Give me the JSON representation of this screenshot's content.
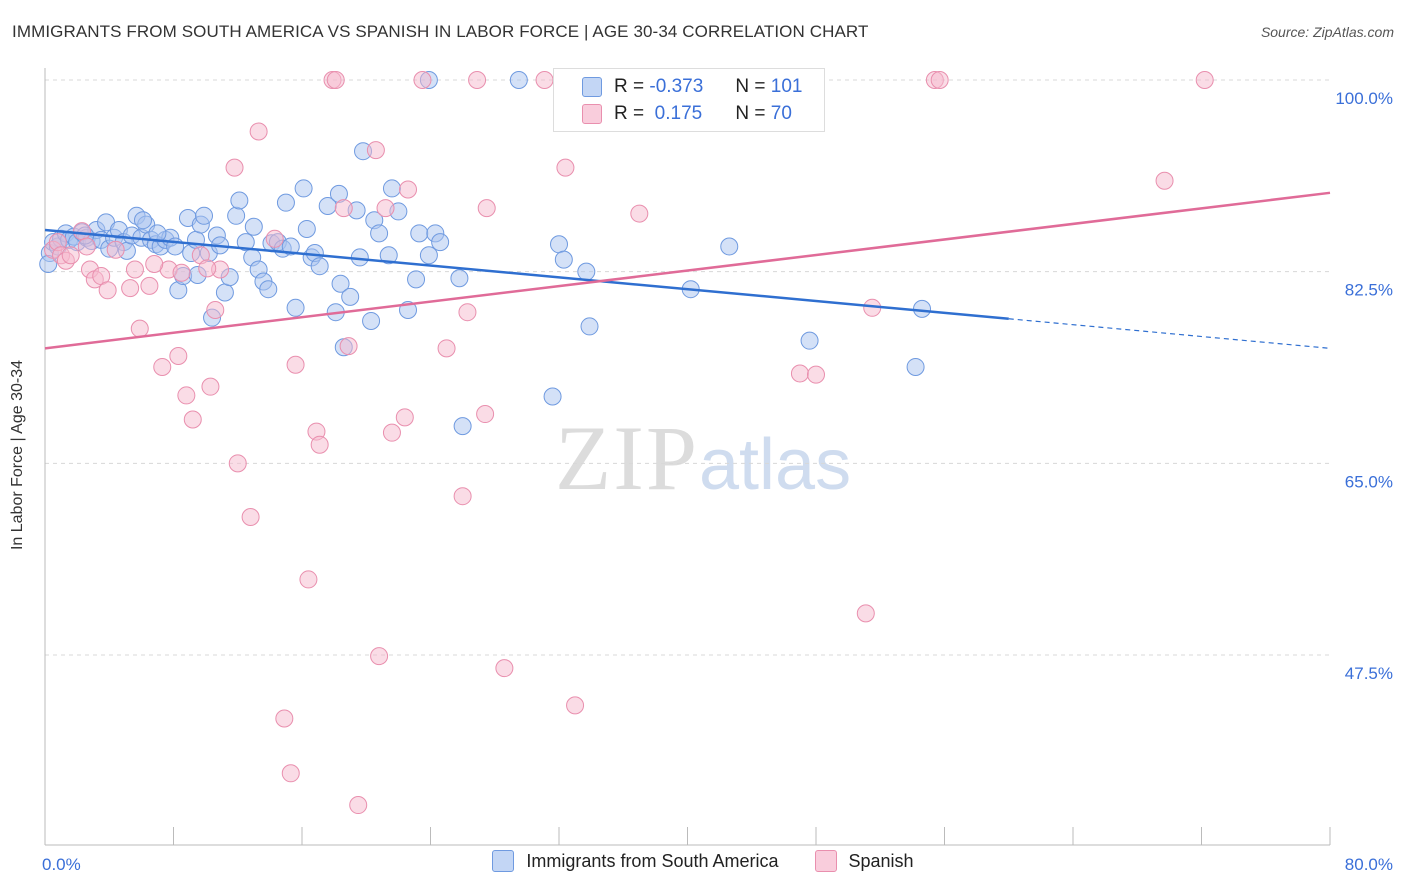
{
  "header": {
    "title": "IMMIGRANTS FROM SOUTH AMERICA VS SPANISH IN LABOR FORCE | AGE 30-34 CORRELATION CHART",
    "source": "Source: ZipAtlas.com"
  },
  "watermark": {
    "zip": "ZIP",
    "atlas": "atlas"
  },
  "legend": {
    "rows": [
      {
        "r_label": "R =",
        "r_value": "-0.373",
        "n_label": "N =",
        "n_value": "101"
      },
      {
        "r_label": "R =",
        "r_value": " 0.175",
        "n_label": "N =",
        "n_value": "70"
      }
    ]
  },
  "bottom_legend": {
    "series1": "Immigrants from South America",
    "series2": "Spanish"
  },
  "colors": {
    "blue_fill": "#a9c4ef",
    "blue_stroke": "#6f9ae0",
    "blue_line": "#2f6fd0",
    "pink_fill": "#f6b9cd",
    "pink_stroke": "#e98fae",
    "pink_line": "#e06b98",
    "tick_text": "#3a6fd8"
  },
  "chart_data": {
    "type": "scatter",
    "xlabel": "",
    "ylabel": "In Labor Force | Age 30-34",
    "xlim": [
      0,
      80
    ],
    "ylim": [
      32,
      102
    ],
    "x_tick_labels": [
      "0.0%",
      "80.0%"
    ],
    "y_ticks": [
      47.5,
      65.0,
      82.5,
      100.0
    ],
    "y_tick_labels": [
      "47.5%",
      "65.0%",
      "82.5%",
      "100.0%"
    ],
    "grid": true,
    "series": [
      {
        "name": "Immigrants from South America",
        "color": "#a9c4ef",
        "trend": {
          "x": [
            0,
            60,
            80
          ],
          "y": [
            86.3,
            78.2,
            75.5
          ],
          "solid_until": 60
        },
        "points": [
          [
            0.3,
            84.2
          ],
          [
            0.5,
            85.2
          ],
          [
            0.8,
            84.8
          ],
          [
            1.0,
            85.5
          ],
          [
            1.3,
            86.0
          ],
          [
            1.5,
            85.4
          ],
          [
            1.8,
            85.7
          ],
          [
            2.0,
            85.2
          ],
          [
            2.3,
            86.1
          ],
          [
            2.6,
            85.6
          ],
          [
            2.9,
            85.3
          ],
          [
            3.2,
            86.3
          ],
          [
            3.5,
            85.4
          ],
          [
            3.8,
            87.0
          ],
          [
            4.0,
            84.6
          ],
          [
            4.3,
            85.6
          ],
          [
            4.6,
            86.3
          ],
          [
            4.9,
            85.2
          ],
          [
            5.1,
            84.4
          ],
          [
            5.4,
            85.8
          ],
          [
            5.7,
            87.6
          ],
          [
            6.0,
            85.6
          ],
          [
            6.3,
            86.8
          ],
          [
            6.6,
            85.4
          ],
          [
            6.9,
            85.0
          ],
          [
            7.2,
            84.8
          ],
          [
            7.5,
            85.4
          ],
          [
            7.8,
            85.6
          ],
          [
            8.1,
            84.8
          ],
          [
            8.3,
            80.8
          ],
          [
            8.6,
            82.1
          ],
          [
            8.9,
            87.4
          ],
          [
            9.1,
            84.2
          ],
          [
            9.4,
            85.4
          ],
          [
            9.7,
            86.8
          ],
          [
            9.9,
            87.6
          ],
          [
            10.2,
            84.2
          ],
          [
            10.4,
            78.3
          ],
          [
            10.7,
            85.8
          ],
          [
            10.9,
            84.9
          ],
          [
            11.2,
            80.6
          ],
          [
            11.5,
            82.0
          ],
          [
            11.9,
            87.6
          ],
          [
            12.1,
            89.0
          ],
          [
            12.5,
            85.2
          ],
          [
            12.9,
            83.8
          ],
          [
            13.0,
            86.6
          ],
          [
            13.3,
            82.7
          ],
          [
            13.6,
            81.6
          ],
          [
            13.9,
            80.9
          ],
          [
            14.1,
            85.1
          ],
          [
            14.5,
            85.2
          ],
          [
            14.8,
            84.6
          ],
          [
            15.0,
            88.8
          ],
          [
            15.3,
            84.8
          ],
          [
            15.6,
            79.2
          ],
          [
            16.1,
            90.1
          ],
          [
            16.3,
            86.4
          ],
          [
            16.6,
            83.8
          ],
          [
            16.8,
            84.2
          ],
          [
            17.1,
            83.0
          ],
          [
            17.6,
            88.5
          ],
          [
            18.1,
            78.8
          ],
          [
            18.3,
            89.6
          ],
          [
            18.4,
            81.4
          ],
          [
            18.6,
            75.6
          ],
          [
            19.0,
            80.2
          ],
          [
            19.4,
            88.1
          ],
          [
            19.6,
            83.8
          ],
          [
            19.8,
            93.5
          ],
          [
            20.3,
            78.0
          ],
          [
            20.5,
            87.2
          ],
          [
            20.8,
            86.0
          ],
          [
            21.4,
            84.0
          ],
          [
            21.6,
            90.1
          ],
          [
            22.0,
            88.0
          ],
          [
            22.6,
            79.0
          ],
          [
            23.1,
            81.8
          ],
          [
            23.3,
            86.0
          ],
          [
            23.9,
            84.0
          ],
          [
            24.3,
            86.0
          ],
          [
            24.6,
            85.2
          ],
          [
            25.8,
            81.9
          ],
          [
            26.0,
            68.4
          ],
          [
            31.6,
            71.1
          ],
          [
            32.0,
            85.0
          ],
          [
            32.3,
            83.6
          ],
          [
            33.7,
            82.5
          ],
          [
            33.9,
            77.5
          ],
          [
            40.2,
            80.9
          ],
          [
            42.6,
            84.8
          ],
          [
            47.6,
            76.2
          ],
          [
            54.2,
            73.8
          ],
          [
            54.6,
            79.1
          ],
          [
            23.9,
            100.0
          ],
          [
            29.5,
            100.0
          ],
          [
            0.2,
            83.2
          ],
          [
            2.5,
            85.8
          ],
          [
            6.1,
            87.2
          ],
          [
            7.0,
            86.0
          ],
          [
            9.5,
            82.2
          ]
        ]
      },
      {
        "name": "Spanish",
        "color": "#f6b9cd",
        "trend": {
          "x": [
            0,
            80
          ],
          "y": [
            75.5,
            89.7
          ]
        },
        "points": [
          [
            0.5,
            84.5
          ],
          [
            0.8,
            85.2
          ],
          [
            1.0,
            84.0
          ],
          [
            1.3,
            83.5
          ],
          [
            1.6,
            84.0
          ],
          [
            2.3,
            86.2
          ],
          [
            2.8,
            82.7
          ],
          [
            3.1,
            81.8
          ],
          [
            3.5,
            82.1
          ],
          [
            3.9,
            80.8
          ],
          [
            4.4,
            84.5
          ],
          [
            5.3,
            81.0
          ],
          [
            5.6,
            82.7
          ],
          [
            5.9,
            77.3
          ],
          [
            6.5,
            81.2
          ],
          [
            7.3,
            73.8
          ],
          [
            7.7,
            82.7
          ],
          [
            8.3,
            74.8
          ],
          [
            8.8,
            71.2
          ],
          [
            9.2,
            69.0
          ],
          [
            9.7,
            84.0
          ],
          [
            10.3,
            72.0
          ],
          [
            10.6,
            79.0
          ],
          [
            10.9,
            82.7
          ],
          [
            11.8,
            92.0
          ],
          [
            12.0,
            65.0
          ],
          [
            12.8,
            60.1
          ],
          [
            13.3,
            95.3
          ],
          [
            14.3,
            85.5
          ],
          [
            14.9,
            41.7
          ],
          [
            15.3,
            36.7
          ],
          [
            15.6,
            74.0
          ],
          [
            16.4,
            54.4
          ],
          [
            16.9,
            67.9
          ],
          [
            17.1,
            66.7
          ],
          [
            17.9,
            100.0
          ],
          [
            18.1,
            100.0
          ],
          [
            18.6,
            88.3
          ],
          [
            18.9,
            75.7
          ],
          [
            19.5,
            33.8
          ],
          [
            20.6,
            93.6
          ],
          [
            20.8,
            47.4
          ],
          [
            21.2,
            88.3
          ],
          [
            21.6,
            67.8
          ],
          [
            22.4,
            69.2
          ],
          [
            22.6,
            90.0
          ],
          [
            23.5,
            100.0
          ],
          [
            25.0,
            75.5
          ],
          [
            26.0,
            62.0
          ],
          [
            26.3,
            78.8
          ],
          [
            26.9,
            100.0
          ],
          [
            27.4,
            69.5
          ],
          [
            27.5,
            88.3
          ],
          [
            28.6,
            46.3
          ],
          [
            31.1,
            100.0
          ],
          [
            32.4,
            92.0
          ],
          [
            33.0,
            42.9
          ],
          [
            37.0,
            87.8
          ],
          [
            47.0,
            73.2
          ],
          [
            48.0,
            73.1
          ],
          [
            51.1,
            51.3
          ],
          [
            51.5,
            79.2
          ],
          [
            55.4,
            100.0
          ],
          [
            55.7,
            100.0
          ],
          [
            69.7,
            90.8
          ],
          [
            72.2,
            100.0
          ],
          [
            2.6,
            84.8
          ],
          [
            6.8,
            83.2
          ],
          [
            8.5,
            82.4
          ],
          [
            10.1,
            82.8
          ]
        ]
      }
    ]
  }
}
